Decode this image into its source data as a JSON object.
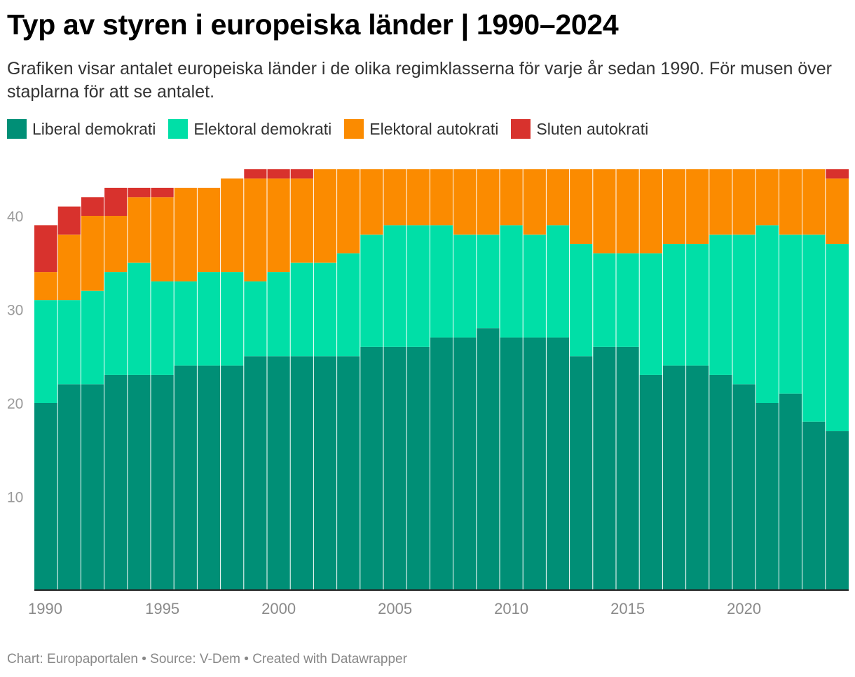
{
  "title": "Typ av styren i europeiska länder | 1990–2024",
  "subtitle": "Grafiken visar antalet europeiska länder i de olika regimklasserna för varje år sedan 1990. För musen över staplarna för att se antalet.",
  "legend": [
    {
      "label": "Liberal demokrati",
      "color": "#008f76"
    },
    {
      "label": "Elektoral demokrati",
      "color": "#00dfa7"
    },
    {
      "label": "Elektoral autokrati",
      "color": "#fb8b00"
    },
    {
      "label": "Sluten autokrati",
      "color": "#d8322d"
    }
  ],
  "footer": "Chart: Europaportalen • Source: V-Dem • Created with Datawrapper",
  "chart_data": {
    "type": "bar",
    "stacked": true,
    "title": "Typ av styren i europeiska länder | 1990–2024",
    "xlabel": "",
    "ylabel": "",
    "ylim": [
      0,
      45
    ],
    "yticks": [
      10,
      20,
      30,
      40
    ],
    "xticks": [
      1990,
      1995,
      2000,
      2005,
      2010,
      2015,
      2020
    ],
    "grid": false,
    "categories": [
      1990,
      1991,
      1992,
      1993,
      1994,
      1995,
      1996,
      1997,
      1998,
      1999,
      2000,
      2001,
      2002,
      2003,
      2004,
      2005,
      2006,
      2007,
      2008,
      2009,
      2010,
      2011,
      2012,
      2013,
      2014,
      2015,
      2016,
      2017,
      2018,
      2019,
      2020,
      2021,
      2022,
      2023,
      2024
    ],
    "series": [
      {
        "name": "Liberal demokrati",
        "color": "#008f76",
        "values": [
          20,
          22,
          22,
          23,
          23,
          23,
          24,
          24,
          24,
          25,
          25,
          25,
          25,
          25,
          26,
          26,
          26,
          27,
          27,
          28,
          27,
          27,
          27,
          25,
          26,
          26,
          23,
          24,
          24,
          23,
          22,
          20,
          21,
          18,
          17
        ]
      },
      {
        "name": "Elektoral demokrati",
        "color": "#00dfa7",
        "values": [
          11,
          9,
          10,
          11,
          12,
          10,
          9,
          10,
          10,
          8,
          9,
          10,
          10,
          11,
          12,
          13,
          13,
          12,
          11,
          10,
          12,
          11,
          12,
          12,
          10,
          10,
          13,
          13,
          13,
          15,
          16,
          19,
          17,
          20,
          20
        ]
      },
      {
        "name": "Elektoral autokrati",
        "color": "#fb8b00",
        "values": [
          3,
          7,
          8,
          6,
          7,
          9,
          10,
          9,
          10,
          11,
          10,
          9,
          10,
          9,
          7,
          6,
          6,
          6,
          7,
          7,
          6,
          7,
          6,
          8,
          9,
          9,
          9,
          8,
          8,
          7,
          7,
          6,
          7,
          7,
          7
        ]
      },
      {
        "name": "Sluten autokrati",
        "color": "#d8322d",
        "values": [
          5,
          3,
          2,
          3,
          1,
          1,
          0,
          0,
          0,
          1,
          1,
          1,
          0,
          0,
          0,
          0,
          0,
          0,
          0,
          0,
          0,
          0,
          0,
          0,
          0,
          0,
          0,
          0,
          0,
          0,
          0,
          0,
          0,
          0,
          1
        ]
      }
    ]
  }
}
